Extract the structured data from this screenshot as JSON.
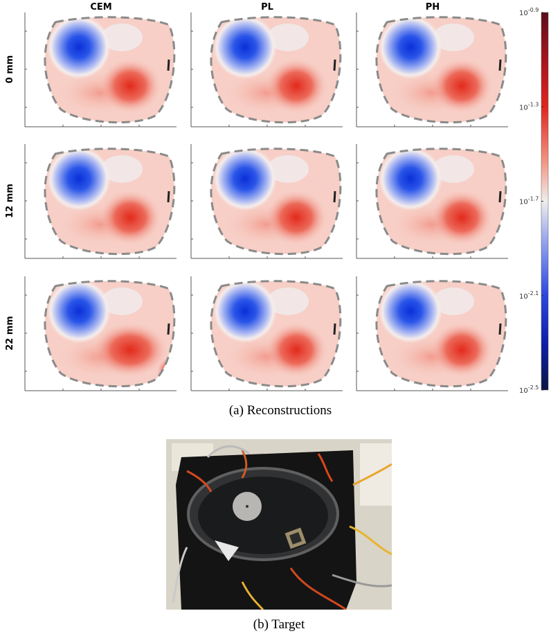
{
  "figure": {
    "columns": [
      "CEM",
      "PL",
      "PH"
    ],
    "rows": [
      "0 mm",
      "12 mm",
      "22 mm"
    ],
    "colorbar": {
      "tick_base": "10",
      "lim": [
        -2.5,
        -0.9
      ],
      "ticks": [
        -0.9,
        -1.3,
        -1.7,
        -2.1,
        -2.5
      ]
    },
    "caption_a": "(a) Reconstructions",
    "caption_b": "(b) Target"
  }
}
